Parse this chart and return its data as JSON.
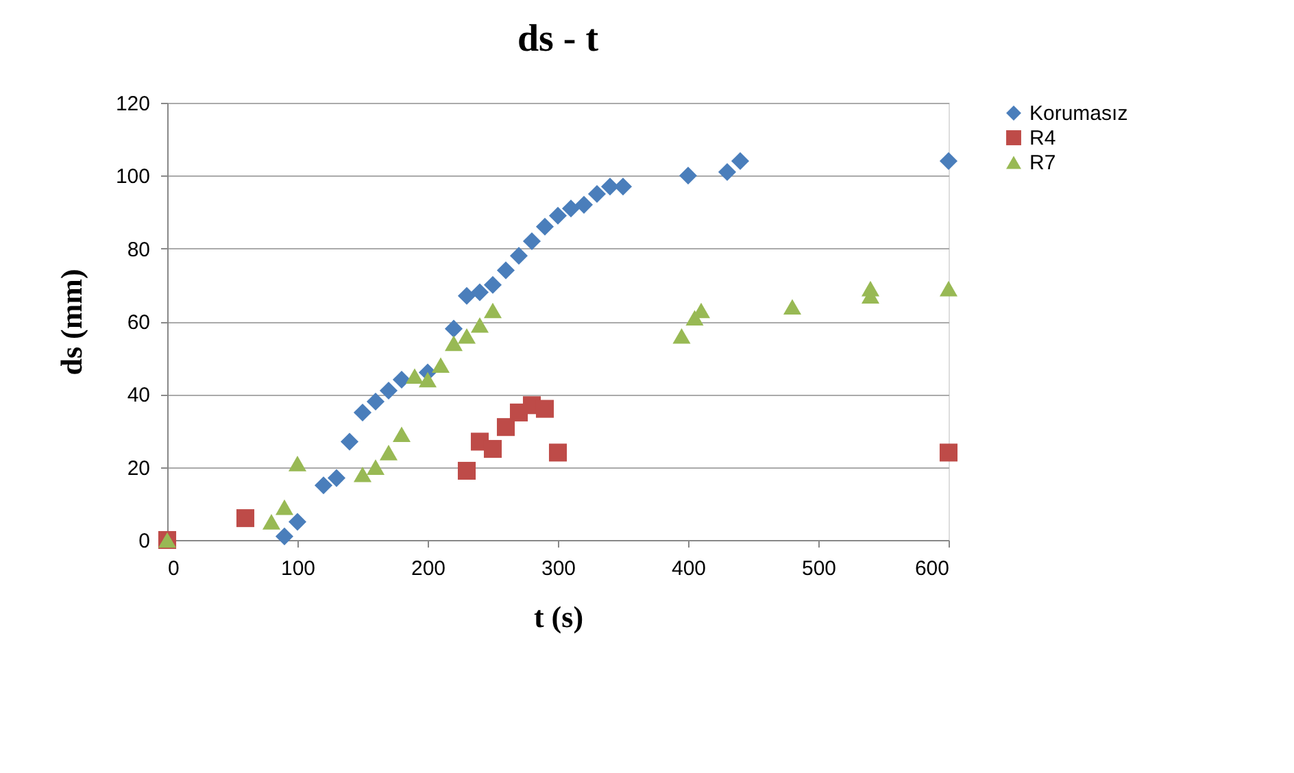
{
  "chart_data": {
    "type": "scatter",
    "title": "ds - t",
    "xlabel": "t (s)",
    "ylabel": "ds (mm)",
    "xlim": [
      0,
      600
    ],
    "xticks": [
      0,
      100,
      200,
      300,
      400,
      500,
      600
    ],
    "ylim": [
      0,
      120
    ],
    "yticks": [
      0,
      20,
      40,
      60,
      80,
      100,
      120
    ],
    "grid": "y",
    "legend": "right",
    "series": [
      {
        "name": "Korumasız",
        "color": "#4a7ebb",
        "marker": "diamond",
        "x": [
          90,
          100,
          120,
          130,
          140,
          150,
          160,
          170,
          180,
          200,
          220,
          230,
          240,
          250,
          260,
          270,
          280,
          290,
          300,
          310,
          320,
          330,
          340,
          350,
          400,
          430,
          440,
          600
        ],
        "values": [
          1,
          5,
          15,
          17,
          27,
          35,
          38,
          41,
          44,
          46,
          58,
          67,
          68,
          70,
          74,
          78,
          82,
          86,
          89,
          91,
          92,
          95,
          97,
          97,
          100,
          101,
          104,
          104
        ]
      },
      {
        "name": "R4",
        "color": "#be4b48",
        "marker": "square",
        "x": [
          0,
          60,
          230,
          240,
          250,
          260,
          270,
          280,
          290,
          300,
          600
        ],
        "values": [
          0,
          6,
          19,
          27,
          25,
          31,
          35,
          37,
          36,
          24,
          24
        ]
      },
      {
        "name": "R7",
        "color": "#98b954",
        "marker": "triangle",
        "x": [
          0,
          80,
          90,
          100,
          150,
          160,
          170,
          180,
          190,
          200,
          210,
          220,
          230,
          240,
          250,
          395,
          405,
          410,
          480,
          540,
          540,
          600
        ],
        "values": [
          0,
          5,
          9,
          21,
          18,
          20,
          24,
          29,
          45,
          44,
          48,
          54,
          56,
          59,
          63,
          56,
          61,
          63,
          64,
          67,
          69,
          69
        ]
      }
    ]
  }
}
